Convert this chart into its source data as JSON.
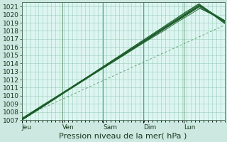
{
  "title": "",
  "xlabel": "Pression niveau de la mer( hPa )",
  "ylabel": "",
  "bg_color": "#cce8e0",
  "plot_bg_color": "#ddf5f0",
  "grid_color": "#99ccbb",
  "line_color": "#1a5c28",
  "dashed_line_color": "#3a8a4a",
  "ylim": [
    1007,
    1021.5
  ],
  "yticks": [
    1007,
    1008,
    1009,
    1010,
    1011,
    1012,
    1013,
    1014,
    1015,
    1016,
    1017,
    1018,
    1019,
    1020,
    1021
  ],
  "day_labels": [
    "Jeu",
    "Ven",
    "Sam",
    "Dim",
    "Lun"
  ],
  "day_positions": [
    0.0,
    0.2,
    0.4,
    0.6,
    0.8
  ],
  "total_points": 240,
  "xlabel_fontsize": 8,
  "tick_fontsize": 6.5
}
